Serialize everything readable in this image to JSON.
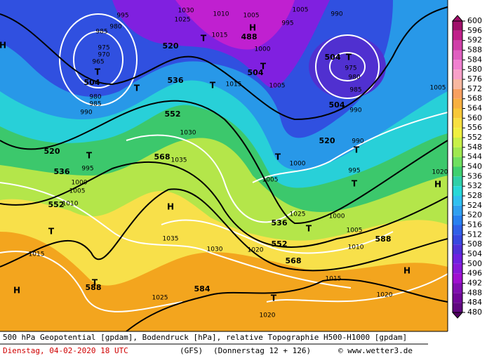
{
  "colorbar": {
    "labels": [
      600,
      596,
      592,
      588,
      584,
      580,
      576,
      572,
      568,
      564,
      560,
      556,
      552,
      548,
      544,
      540,
      536,
      532,
      528,
      524,
      520,
      516,
      512,
      508,
      504,
      500,
      496,
      492,
      488,
      484,
      480
    ]
  },
  "map": {
    "labels": [
      "995",
      "1030",
      "1025",
      "1010",
      "1005",
      "1005",
      "990",
      "985",
      "980",
      "975",
      "970",
      "965",
      "504",
      "520",
      "488",
      "1015",
      "995",
      "1000",
      "504",
      "1015",
      "1005",
      "504",
      "975",
      "980",
      "985",
      "990",
      "504",
      "1005",
      "536",
      "552",
      "1030",
      "568",
      "1035",
      "520",
      "536",
      "552",
      "995",
      "1000",
      "1005",
      "1010",
      "520",
      "990",
      "1000",
      "1005",
      "995",
      "1020",
      "1035",
      "1030",
      "1020",
      "536",
      "1025",
      "1000",
      "1005",
      "552",
      "1010",
      "588",
      "568",
      "1015",
      "1015",
      "588",
      "584",
      "1025",
      "1020",
      "1020",
      "990",
      "985",
      "980"
    ],
    "highs_lows": [
      "H",
      "H",
      "H",
      "H",
      "H",
      "H",
      "T",
      "T",
      "T",
      "T",
      "T",
      "T",
      "T",
      "T",
      "T",
      "T",
      "T",
      "T",
      "T",
      "T"
    ]
  },
  "footer": {
    "description": "500 hPa Geopotential [gpdam], Bodendruck [hPa], relative Topographie H500-H1000 [gpdam]",
    "date": "Dienstag, 04-02-2020  18 UTC",
    "model": "(GFS)",
    "forecast": "(Donnerstag 12 + 126)",
    "credit": "© www.wetter3.de"
  }
}
